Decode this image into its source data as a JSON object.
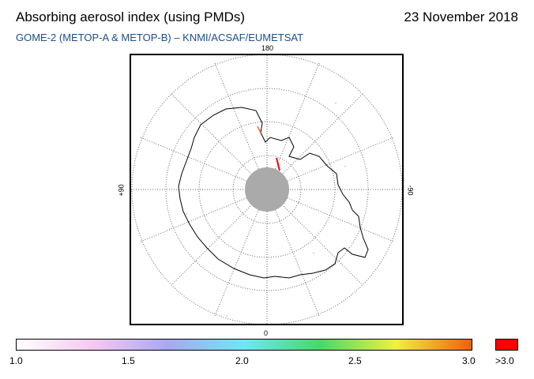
{
  "header": {
    "title": "Absorbing aerosol index (using PMDs)",
    "date": "23 November 2018",
    "subtitle": "GOME-2 (METOP-A & METOP-B)  –  KNMI/ACSAF/EUMETSAT"
  },
  "map": {
    "projection": "south polar stereographic",
    "longitude_labels": {
      "top": "180",
      "bottom": "0",
      "left": "+90",
      "right": "-90"
    },
    "pole_mask_color": "#aaaaaa",
    "coastline_color": "#000000",
    "graticule_color": "#666666"
  },
  "colorbar": {
    "tick_labels": [
      "1.0",
      "1.5",
      "2.0",
      "2.5",
      "3.0"
    ],
    "overflow_label": ">3.0",
    "range": [
      1.0,
      3.0
    ],
    "colors": [
      "#ffffff",
      "#f6c8f2",
      "#a8a8f2",
      "#70e6f4",
      "#48d868",
      "#f0f040",
      "#f06010",
      "#ff0000"
    ]
  }
}
